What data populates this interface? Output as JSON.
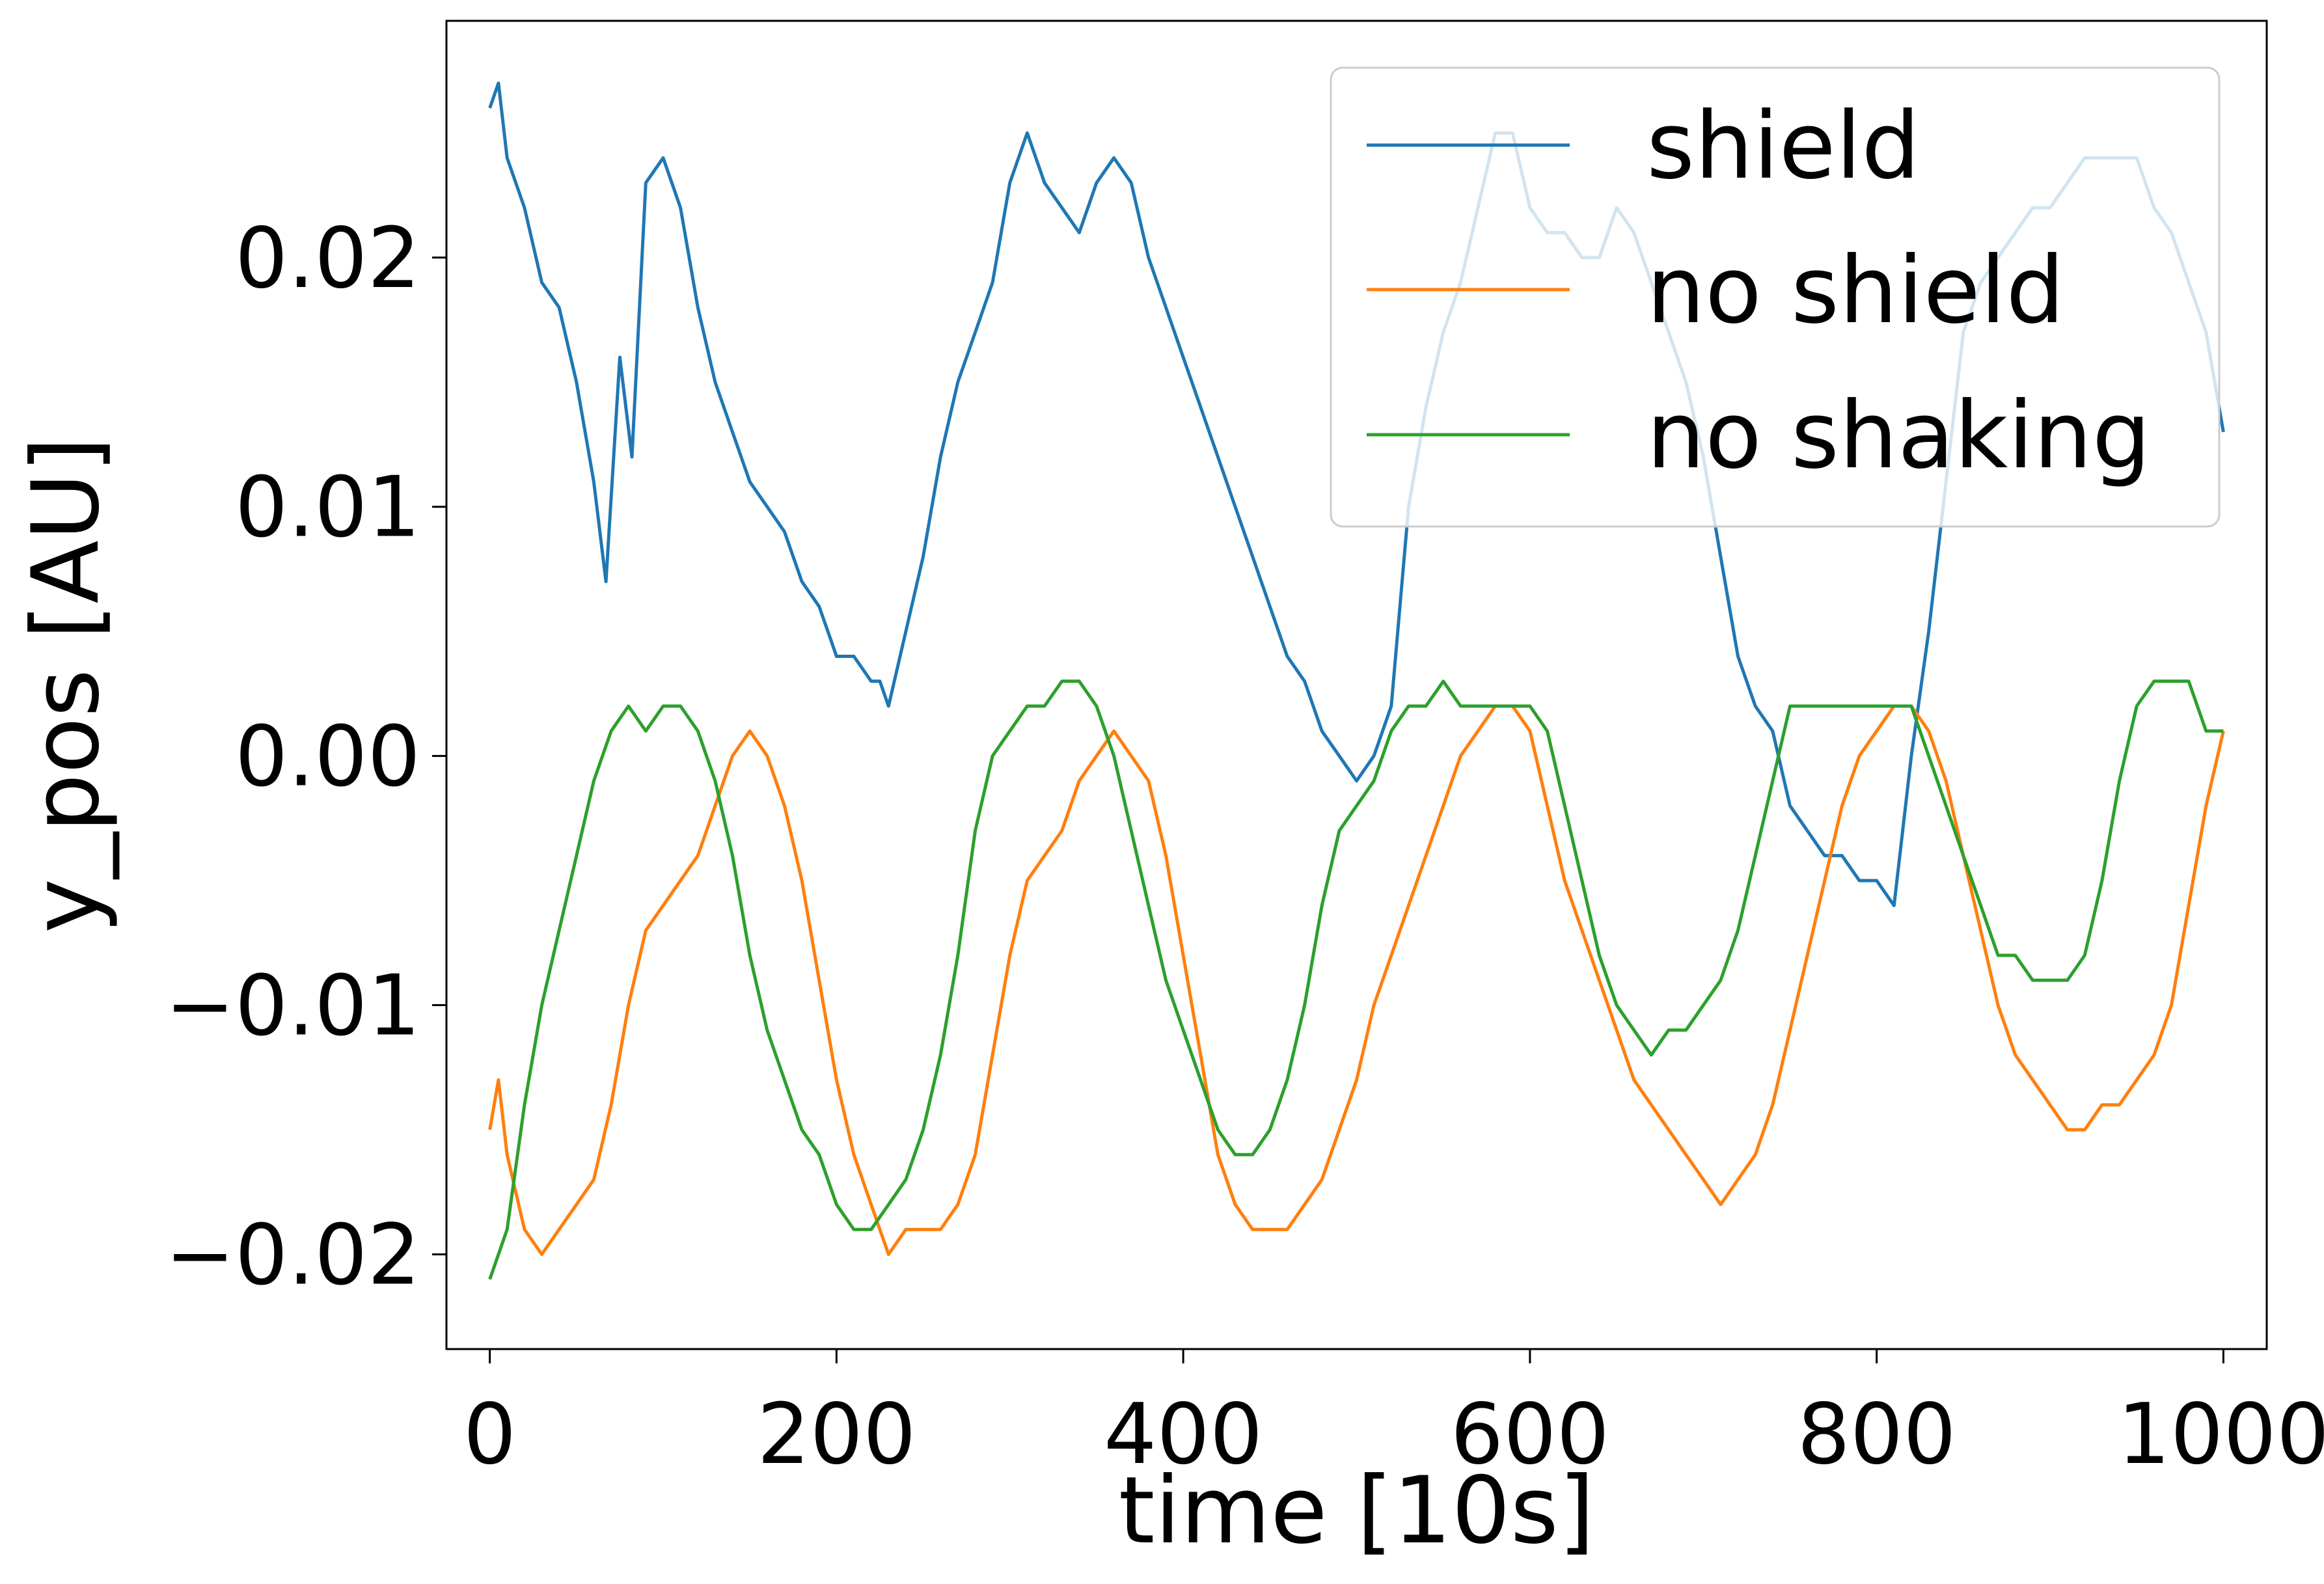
{
  "chart_data": {
    "type": "line",
    "title": "",
    "xlabel": "time [10s]",
    "ylabel": "y_pos [AU]",
    "xlim": [
      -25,
      1025
    ],
    "ylim": [
      -0.0238,
      0.0295
    ],
    "x_ticks": [
      0,
      200,
      400,
      600,
      800,
      1000
    ],
    "x_tick_labels": [
      "0",
      "200",
      "400",
      "600",
      "800",
      "1000"
    ],
    "y_ticks": [
      0.02,
      0.01,
      0.0,
      -0.01,
      -0.02
    ],
    "y_tick_labels": [
      "0.02",
      "0.01",
      "0.00",
      "−0.01",
      "−0.02"
    ],
    "grid": false,
    "legend_position": "upper right",
    "series": [
      {
        "name": "shield",
        "color": "#1f77b4",
        "x": [
          0,
          5,
          10,
          20,
          30,
          40,
          50,
          60,
          67,
          75,
          82,
          90,
          100,
          110,
          120,
          130,
          140,
          150,
          160,
          170,
          180,
          190,
          200,
          210,
          220,
          225,
          230,
          240,
          250,
          260,
          270,
          280,
          290,
          300,
          310,
          320,
          330,
          340,
          350,
          360,
          370,
          380,
          390,
          400,
          410,
          420,
          430,
          440,
          450,
          460,
          470,
          480,
          490,
          500,
          510,
          520,
          530,
          540,
          550,
          560,
          570,
          580,
          590,
          600,
          610,
          620,
          630,
          640,
          650,
          660,
          670,
          680,
          690,
          700,
          710,
          720,
          730,
          740,
          750,
          760,
          770,
          780,
          790,
          800,
          810,
          820,
          830,
          840,
          850,
          860,
          870,
          880,
          890,
          900,
          910,
          920,
          930,
          940,
          950,
          960,
          970,
          980,
          990,
          1000
        ],
        "y": [
          0.026,
          0.027,
          0.024,
          0.022,
          0.019,
          0.018,
          0.015,
          0.011,
          0.007,
          0.016,
          0.012,
          0.023,
          0.024,
          0.022,
          0.018,
          0.015,
          0.013,
          0.011,
          0.01,
          0.009,
          0.007,
          0.006,
          0.004,
          0.004,
          0.003,
          0.003,
          0.002,
          0.005,
          0.008,
          0.012,
          0.015,
          0.017,
          0.019,
          0.023,
          0.025,
          0.023,
          0.022,
          0.021,
          0.023,
          0.024,
          0.023,
          0.02,
          0.018,
          0.016,
          0.014,
          0.012,
          0.01,
          0.008,
          0.006,
          0.004,
          0.003,
          0.001,
          0.0,
          -0.001,
          0.0,
          0.002,
          0.01,
          0.014,
          0.017,
          0.019,
          0.022,
          0.025,
          0.025,
          0.022,
          0.021,
          0.021,
          0.02,
          0.02,
          0.022,
          0.021,
          0.019,
          0.017,
          0.015,
          0.012,
          0.008,
          0.004,
          0.002,
          0.001,
          -0.002,
          -0.003,
          -0.004,
          -0.004,
          -0.005,
          -0.005,
          -0.006,
          0.0,
          0.005,
          0.011,
          0.017,
          0.019,
          0.02,
          0.021,
          0.022,
          0.022,
          0.023,
          0.024,
          0.024,
          0.024,
          0.024,
          0.022,
          0.021,
          0.019,
          0.017,
          0.013
        ]
      },
      {
        "name": "no shield",
        "color": "#ff7f0e",
        "x": [
          0,
          5,
          10,
          20,
          30,
          40,
          50,
          60,
          70,
          80,
          90,
          100,
          110,
          120,
          130,
          140,
          150,
          160,
          170,
          180,
          190,
          200,
          210,
          220,
          230,
          240,
          250,
          260,
          270,
          280,
          290,
          300,
          310,
          320,
          330,
          340,
          350,
          360,
          370,
          380,
          390,
          400,
          410,
          420,
          430,
          440,
          450,
          460,
          470,
          480,
          490,
          500,
          510,
          520,
          530,
          540,
          550,
          560,
          570,
          580,
          590,
          600,
          610,
          620,
          630,
          640,
          650,
          660,
          670,
          680,
          690,
          700,
          710,
          720,
          730,
          740,
          750,
          760,
          770,
          780,
          790,
          800,
          810,
          820,
          830,
          840,
          850,
          860,
          870,
          880,
          890,
          900,
          910,
          920,
          930,
          940,
          950,
          960,
          970,
          980,
          990,
          1000
        ],
        "y": [
          -0.015,
          -0.013,
          -0.016,
          -0.019,
          -0.02,
          -0.019,
          -0.018,
          -0.017,
          -0.014,
          -0.01,
          -0.007,
          -0.006,
          -0.005,
          -0.004,
          -0.002,
          0.0,
          0.001,
          0.0,
          -0.002,
          -0.005,
          -0.009,
          -0.013,
          -0.016,
          -0.018,
          -0.02,
          -0.019,
          -0.019,
          -0.019,
          -0.018,
          -0.016,
          -0.012,
          -0.008,
          -0.005,
          -0.004,
          -0.003,
          -0.001,
          0.0,
          0.001,
          0.0,
          -0.001,
          -0.004,
          -0.008,
          -0.012,
          -0.016,
          -0.018,
          -0.019,
          -0.019,
          -0.019,
          -0.018,
          -0.017,
          -0.015,
          -0.013,
          -0.01,
          -0.008,
          -0.006,
          -0.004,
          -0.002,
          0.0,
          0.001,
          0.002,
          0.002,
          0.001,
          -0.002,
          -0.005,
          -0.007,
          -0.009,
          -0.011,
          -0.013,
          -0.014,
          -0.015,
          -0.016,
          -0.017,
          -0.018,
          -0.017,
          -0.016,
          -0.014,
          -0.011,
          -0.008,
          -0.005,
          -0.002,
          0.0,
          0.001,
          0.002,
          0.002,
          0.001,
          -0.001,
          -0.004,
          -0.007,
          -0.01,
          -0.012,
          -0.013,
          -0.014,
          -0.015,
          -0.015,
          -0.014,
          -0.014,
          -0.013,
          -0.012,
          -0.01,
          -0.006,
          -0.002,
          0.001
        ]
      },
      {
        "name": "no shaking",
        "color": "#2ca02c",
        "x": [
          0,
          5,
          10,
          20,
          30,
          40,
          50,
          60,
          70,
          80,
          90,
          100,
          110,
          120,
          130,
          140,
          150,
          160,
          170,
          180,
          190,
          200,
          210,
          220,
          230,
          240,
          250,
          260,
          270,
          280,
          290,
          300,
          310,
          320,
          330,
          340,
          350,
          360,
          370,
          380,
          390,
          400,
          410,
          420,
          430,
          440,
          450,
          460,
          470,
          480,
          490,
          500,
          510,
          520,
          530,
          540,
          550,
          560,
          570,
          580,
          590,
          600,
          610,
          620,
          630,
          640,
          650,
          660,
          670,
          680,
          690,
          700,
          710,
          720,
          730,
          740,
          750,
          760,
          770,
          780,
          790,
          800,
          810,
          820,
          830,
          840,
          850,
          860,
          870,
          880,
          890,
          900,
          910,
          920,
          930,
          940,
          950,
          960,
          970,
          980,
          990,
          1000
        ],
        "y": [
          -0.021,
          -0.02,
          -0.019,
          -0.014,
          -0.01,
          -0.007,
          -0.004,
          -0.001,
          0.001,
          0.002,
          0.001,
          0.002,
          0.002,
          0.001,
          -0.001,
          -0.004,
          -0.008,
          -0.011,
          -0.013,
          -0.015,
          -0.016,
          -0.018,
          -0.019,
          -0.019,
          -0.018,
          -0.017,
          -0.015,
          -0.012,
          -0.008,
          -0.003,
          0.0,
          0.001,
          0.002,
          0.002,
          0.003,
          0.003,
          0.002,
          0.0,
          -0.003,
          -0.006,
          -0.009,
          -0.011,
          -0.013,
          -0.015,
          -0.016,
          -0.016,
          -0.015,
          -0.013,
          -0.01,
          -0.006,
          -0.003,
          -0.002,
          -0.001,
          0.001,
          0.002,
          0.002,
          0.003,
          0.002,
          0.002,
          0.002,
          0.002,
          0.002,
          0.001,
          -0.002,
          -0.005,
          -0.008,
          -0.01,
          -0.011,
          -0.012,
          -0.011,
          -0.011,
          -0.01,
          -0.009,
          -0.007,
          -0.004,
          -0.001,
          0.002,
          0.002,
          0.002,
          0.002,
          0.002,
          0.002,
          0.002,
          0.002,
          0.0,
          -0.002,
          -0.004,
          -0.006,
          -0.008,
          -0.008,
          -0.009,
          -0.009,
          -0.009,
          -0.008,
          -0.005,
          -0.001,
          0.002,
          0.003,
          0.003,
          0.003,
          0.001,
          0.001
        ]
      }
    ]
  }
}
